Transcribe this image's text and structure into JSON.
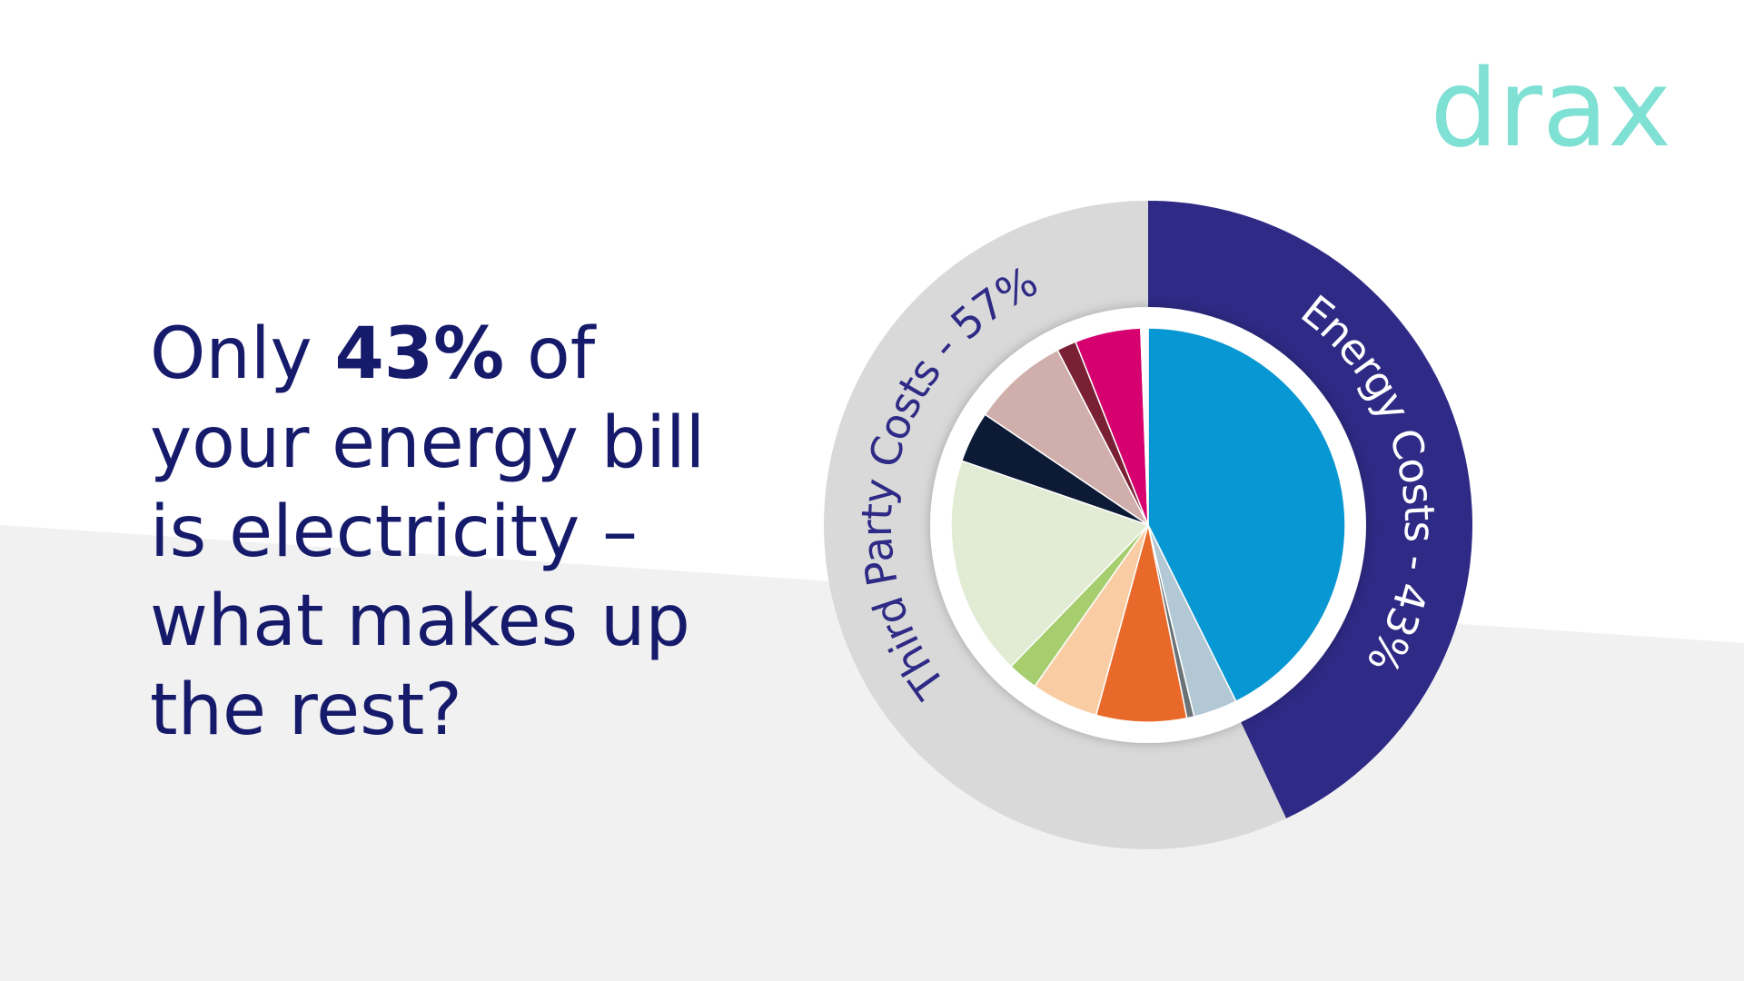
{
  "brand": "drax",
  "headline": [
    "Only ",
    "43%",
    " of",
    "your energy bill",
    "is electricity –",
    "what makes up",
    "the rest?"
  ],
  "chart_data": [
    {
      "type": "donut",
      "categories": [
        "Energy Costs - 43%",
        "Third Party Costs - 57%"
      ],
      "values": [
        43,
        57
      ],
      "colors": [
        "#2e2a85",
        "#d9d9d9"
      ],
      "label_color": [
        "#ffffff",
        "#2e2a85"
      ]
    },
    {
      "type": "pie",
      "categories": [
        null,
        null,
        null,
        null,
        null,
        null,
        null,
        null,
        null,
        null,
        null,
        null
      ],
      "values": [
        42.6,
        3.6,
        0.6,
        7.4,
        5.5,
        2.5,
        18.0,
        4.2,
        7.9,
        1.6,
        5.4,
        0.6
      ],
      "colors": [
        "#0797d2",
        "#b2c8d4",
        "#6b7275",
        "#e8692a",
        "#f9cca4",
        "#a6ce6f",
        "#e2ebd3",
        "#0c1a35",
        "#d0aeab",
        "#7a2035",
        "#d6006f",
        "#ffffff"
      ]
    }
  ]
}
